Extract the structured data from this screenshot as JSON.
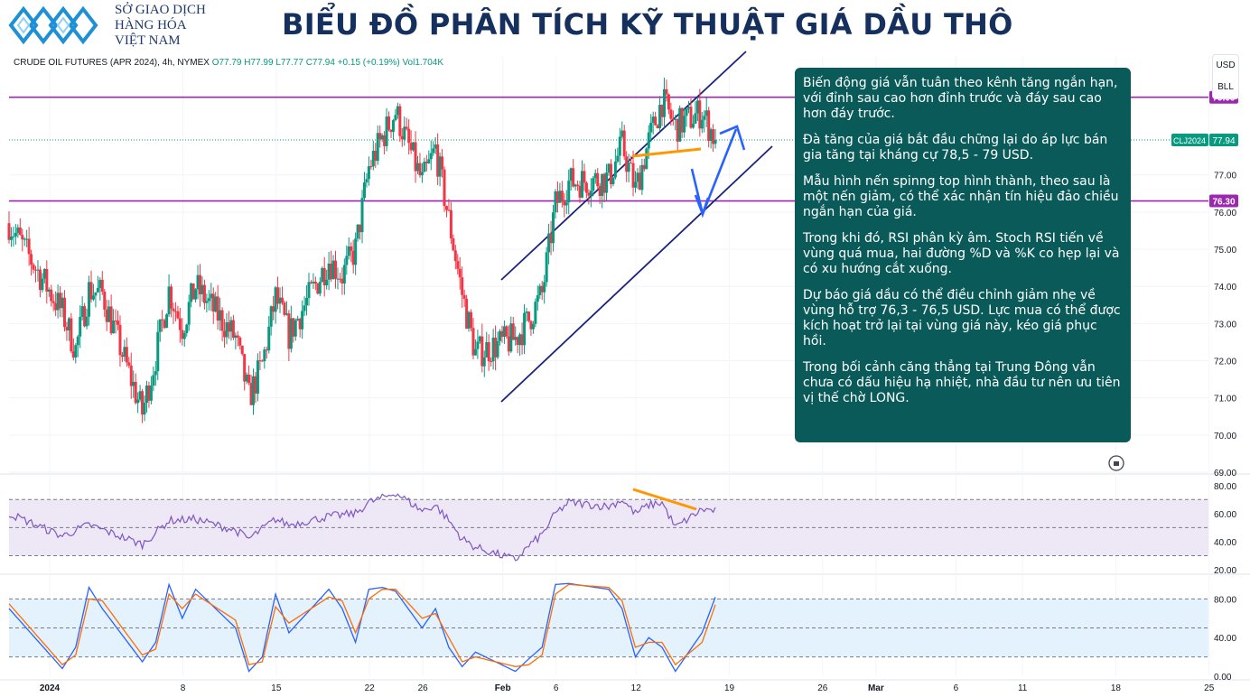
{
  "header": {
    "org_line1": "SỞ GIAO DỊCH",
    "org_line2": "HÀNG HÓA",
    "org_line3": "VIỆT NAM",
    "title": "BIỂU ĐỒ PHÂN TÍCH KỸ THUẬT GIÁ DẦU THÔ",
    "logo_icon": "diamond-chain-logo-icon"
  },
  "symbol_bar": {
    "name": "CRUDE OIL FUTURES (APR 2024), 4h, NYMEX",
    "open": "O77.79",
    "high": "H77.99",
    "low": "L77.77",
    "close": "C77.94",
    "change": "+0.15 (+0.19%)",
    "volume": "Vol1.704K"
  },
  "currency_chips": [
    "USD",
    "BLL"
  ],
  "note_paragraphs": [
    "Biến động giá vẫn tuân theo kênh tăng ngắn hạn, với đỉnh sau cao hơn đỉnh trước và đáy sau cao hơn đáy trước.",
    "Đà tăng của giá bắt đầu chững lại do áp lực bán gia tăng tại kháng cự 78,5 - 79 USD.",
    "Mẫu hình nến spinng top hình thành, theo sau là một nến giảm, có thể xác nhận tín hiệu đảo chiều ngắn hạn của giá.",
    "Trong khi đó, RSI phân kỳ âm. Stoch RSI tiến về vùng quá mua, hai đường %D và %K co hẹp lại và có xu hướng cắt xuống.",
    "Dự báo giá dầu có thể điều chỉnh giảm nhẹ về vùng hỗ trợ 76,3 - 76,5 USD. Lực mua có thể được kích hoạt trở lại tại vùng giá này, kéo giá phục hồi.",
    "Trong bối cảnh căng thẳng tại Trung Đông vẫn chưa có dấu hiệu hạ nhiệt, nhà đầu tư nên ưu tiên vị thế chờ LONG."
  ],
  "colors": {
    "up": "#089981",
    "down": "#f23645",
    "resistance": "#9c27b0",
    "channel": "#1a237e",
    "arrow": "#2962ff",
    "divergence": "#ff9800",
    "rsi": "#7e57c2",
    "stoch_k": "#2962ff",
    "stoch_d": "#ff6d00",
    "note_bg": "#0b5a5a"
  },
  "chart_data": [
    {
      "type": "candlestick",
      "title": "",
      "timeframe": "4h",
      "y_ticks": [
        "69.00",
        "70.00",
        "71.00",
        "72.00",
        "73.00",
        "74.00",
        "75.00",
        "76.00",
        "77.00"
      ],
      "ylim": [
        69,
        80.2
      ],
      "x_ticks": [
        "2024",
        "8",
        "15",
        "22",
        "26",
        "Feb",
        "6",
        "12",
        "19",
        "26",
        "Mar",
        "6",
        "11",
        "18",
        "25"
      ],
      "x_range_days": [
        "2023-12-29",
        "2024-03-28"
      ],
      "horizontal_levels": [
        {
          "label": "79.09",
          "value": 79.09
        },
        {
          "label": "76.30",
          "value": 76.3
        }
      ],
      "last_price": {
        "label": "CLJ2024",
        "value": "77.94"
      },
      "close_path": [
        [
          "2023-12-29",
          75.7
        ],
        [
          "2024-01-02",
          73.3
        ],
        [
          "2024-01-03",
          72.3
        ],
        [
          "2024-01-04",
          73.9
        ],
        [
          "2024-01-05",
          73.8
        ],
        [
          "2024-01-08",
          70.6
        ],
        [
          "2024-01-09",
          72.1
        ],
        [
          "2024-01-10",
          73.9
        ],
        [
          "2024-01-11",
          72.9
        ],
        [
          "2024-01-12",
          74.0
        ],
        [
          "2024-01-15",
          72.6
        ],
        [
          "2024-01-16",
          71.0
        ],
        [
          "2024-01-17",
          71.9
        ],
        [
          "2024-01-18",
          73.7
        ],
        [
          "2024-01-19",
          72.7
        ],
        [
          "2024-01-22",
          74.7
        ],
        [
          "2024-01-23",
          74.3
        ],
        [
          "2024-01-24",
          75.0
        ],
        [
          "2024-01-25",
          77.2
        ],
        [
          "2024-01-26",
          78.0
        ],
        [
          "2024-01-27",
          78.7
        ],
        [
          "2024-01-29",
          76.8
        ],
        [
          "2024-01-30",
          77.7
        ],
        [
          "2024-01-31",
          75.8
        ],
        [
          "2024-02-01",
          73.8
        ],
        [
          "2024-02-02",
          72.2
        ],
        [
          "2024-02-05",
          72.6
        ],
        [
          "2024-02-06",
          73.1
        ],
        [
          "2024-02-07",
          73.8
        ],
        [
          "2024-02-08",
          76.2
        ],
        [
          "2024-02-09",
          76.8
        ],
        [
          "2024-02-12",
          76.9
        ],
        [
          "2024-02-13",
          77.8
        ],
        [
          "2024-02-14",
          76.6
        ],
        [
          "2024-02-15",
          77.9
        ],
        [
          "2024-02-16",
          79.0
        ],
        [
          "2024-02-17",
          78.3
        ],
        [
          "2024-02-19",
          78.7
        ],
        [
          "2024-02-20",
          77.94
        ]
      ]
    },
    {
      "type": "line",
      "title": "",
      "indicator": "RSI",
      "y_ticks": [
        "20.00",
        "40.00",
        "60.00",
        "80.00"
      ],
      "ylim": [
        20,
        85
      ],
      "bands": [
        30,
        50,
        70
      ],
      "points": [
        [
          "2023-12-29",
          60
        ],
        [
          "2024-01-02",
          44
        ],
        [
          "2024-01-04",
          52
        ],
        [
          "2024-01-08",
          38
        ],
        [
          "2024-01-10",
          55
        ],
        [
          "2024-01-12",
          56
        ],
        [
          "2024-01-15",
          48
        ],
        [
          "2024-01-16",
          42
        ],
        [
          "2024-01-18",
          56
        ],
        [
          "2024-01-19",
          52
        ],
        [
          "2024-01-22",
          58
        ],
        [
          "2024-01-24",
          60
        ],
        [
          "2024-01-25",
          68
        ],
        [
          "2024-01-26",
          71
        ],
        [
          "2024-01-27",
          75
        ],
        [
          "2024-01-29",
          62
        ],
        [
          "2024-01-30",
          66
        ],
        [
          "2024-01-31",
          55
        ],
        [
          "2024-02-01",
          42
        ],
        [
          "2024-02-02",
          36
        ],
        [
          "2024-02-05",
          27
        ],
        [
          "2024-02-06",
          37
        ],
        [
          "2024-02-07",
          45
        ],
        [
          "2024-02-08",
          60
        ],
        [
          "2024-02-09",
          68
        ],
        [
          "2024-02-12",
          65
        ],
        [
          "2024-02-13",
          70
        ],
        [
          "2024-02-14",
          60
        ],
        [
          "2024-02-15",
          66
        ],
        [
          "2024-02-16",
          68
        ],
        [
          "2024-02-17",
          50
        ],
        [
          "2024-02-19",
          63
        ],
        [
          "2024-02-20",
          62
        ]
      ]
    },
    {
      "type": "line",
      "title": "",
      "indicator": "Stoch RSI",
      "y_ticks": [
        "0.00",
        "40.00",
        "80.00"
      ],
      "ylim": [
        0,
        100
      ],
      "bands": [
        20,
        50,
        80
      ],
      "series": [
        {
          "points": [
            [
              "2023-12-29",
              70
            ],
            [
              "2024-01-02",
              8
            ],
            [
              "2024-01-03",
              30
            ],
            [
              "2024-01-04",
              92
            ],
            [
              "2024-01-05",
              70
            ],
            [
              "2024-01-08",
              15
            ],
            [
              "2024-01-09",
              35
            ],
            [
              "2024-01-10",
              95
            ],
            [
              "2024-01-11",
              60
            ],
            [
              "2024-01-12",
              90
            ],
            [
              "2024-01-15",
              50
            ],
            [
              "2024-01-16",
              5
            ],
            [
              "2024-01-17",
              20
            ],
            [
              "2024-01-18",
              85
            ],
            [
              "2024-01-19",
              45
            ],
            [
              "2024-01-22",
              90
            ],
            [
              "2024-01-23",
              70
            ],
            [
              "2024-01-24",
              35
            ],
            [
              "2024-01-25",
              90
            ],
            [
              "2024-01-26",
              92
            ],
            [
              "2024-01-27",
              88
            ],
            [
              "2024-01-29",
              50
            ],
            [
              "2024-01-30",
              70
            ],
            [
              "2024-01-31",
              30
            ],
            [
              "2024-02-01",
              10
            ],
            [
              "2024-02-02",
              25
            ],
            [
              "2024-02-05",
              5
            ],
            [
              "2024-02-06",
              18
            ],
            [
              "2024-02-07",
              30
            ],
            [
              "2024-02-08",
              95
            ],
            [
              "2024-02-09",
              96
            ],
            [
              "2024-02-12",
              90
            ],
            [
              "2024-02-13",
              70
            ],
            [
              "2024-02-14",
              20
            ],
            [
              "2024-02-15",
              40
            ],
            [
              "2024-02-16",
              30
            ],
            [
              "2024-02-17",
              5
            ],
            [
              "2024-02-19",
              45
            ],
            [
              "2024-02-20",
              82
            ]
          ]
        },
        {
          "points": [
            [
              "2023-12-29",
              75
            ],
            [
              "2024-01-02",
              12
            ],
            [
              "2024-01-03",
              22
            ],
            [
              "2024-01-04",
              80
            ],
            [
              "2024-01-05",
              78
            ],
            [
              "2024-01-08",
              22
            ],
            [
              "2024-01-09",
              28
            ],
            [
              "2024-01-10",
              85
            ],
            [
              "2024-01-11",
              70
            ],
            [
              "2024-01-12",
              85
            ],
            [
              "2024-01-15",
              58
            ],
            [
              "2024-01-16",
              12
            ],
            [
              "2024-01-17",
              15
            ],
            [
              "2024-01-18",
              72
            ],
            [
              "2024-01-19",
              55
            ],
            [
              "2024-01-22",
              82
            ],
            [
              "2024-01-23",
              78
            ],
            [
              "2024-01-24",
              45
            ],
            [
              "2024-01-25",
              80
            ],
            [
              "2024-01-26",
              90
            ],
            [
              "2024-01-27",
              90
            ],
            [
              "2024-01-29",
              60
            ],
            [
              "2024-01-30",
              65
            ],
            [
              "2024-01-31",
              40
            ],
            [
              "2024-02-01",
              15
            ],
            [
              "2024-02-02",
              20
            ],
            [
              "2024-02-05",
              10
            ],
            [
              "2024-02-06",
              12
            ],
            [
              "2024-02-07",
              22
            ],
            [
              "2024-02-08",
              85
            ],
            [
              "2024-02-09",
              95
            ],
            [
              "2024-02-12",
              92
            ],
            [
              "2024-02-13",
              78
            ],
            [
              "2024-02-14",
              30
            ],
            [
              "2024-02-15",
              35
            ],
            [
              "2024-02-16",
              35
            ],
            [
              "2024-02-17",
              12
            ],
            [
              "2024-02-19",
              35
            ],
            [
              "2024-02-20",
              74
            ]
          ]
        }
      ]
    }
  ]
}
